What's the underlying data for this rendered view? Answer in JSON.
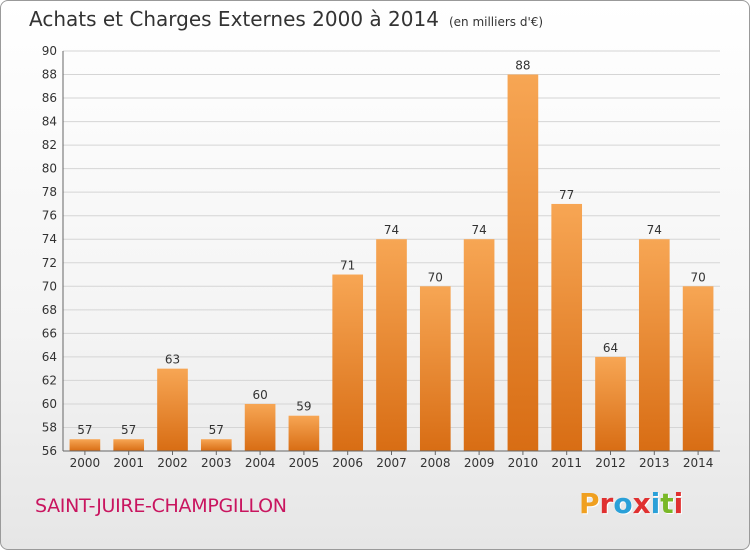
{
  "header": {
    "title": "Achats et Charges Externes 2000 à 2014",
    "unit": "(en milliers d'€)"
  },
  "footer": {
    "town": "SAINT-JUIRE-CHAMPGILLON",
    "logo": "Proxiti",
    "logo_colors": [
      "#f0a020",
      "#e03030",
      "#2aa0d8",
      "#e03030",
      "#2aa0d8",
      "#7ab828",
      "#e03030"
    ]
  },
  "colors": {
    "bar_top": "#f7a654",
    "bar_bottom": "#d86d14",
    "grid": "#d5d5d5",
    "axis": "#666666"
  },
  "chart_data": {
    "type": "bar",
    "title": "Achats et Charges Externes 2000 à 2014",
    "ylabel": "",
    "xlabel": "",
    "ylim": [
      56,
      90
    ],
    "yticks": [
      56,
      58,
      60,
      62,
      64,
      66,
      68,
      70,
      72,
      74,
      76,
      78,
      80,
      82,
      84,
      86,
      88,
      90
    ],
    "grid": true,
    "categories": [
      "2000",
      "2001",
      "2002",
      "2003",
      "2004",
      "2005",
      "2006",
      "2007",
      "2008",
      "2009",
      "2010",
      "2011",
      "2012",
      "2013",
      "2014"
    ],
    "values": [
      57,
      57,
      63,
      57,
      60,
      59,
      71,
      74,
      70,
      74,
      88,
      77,
      64,
      74,
      70
    ]
  }
}
